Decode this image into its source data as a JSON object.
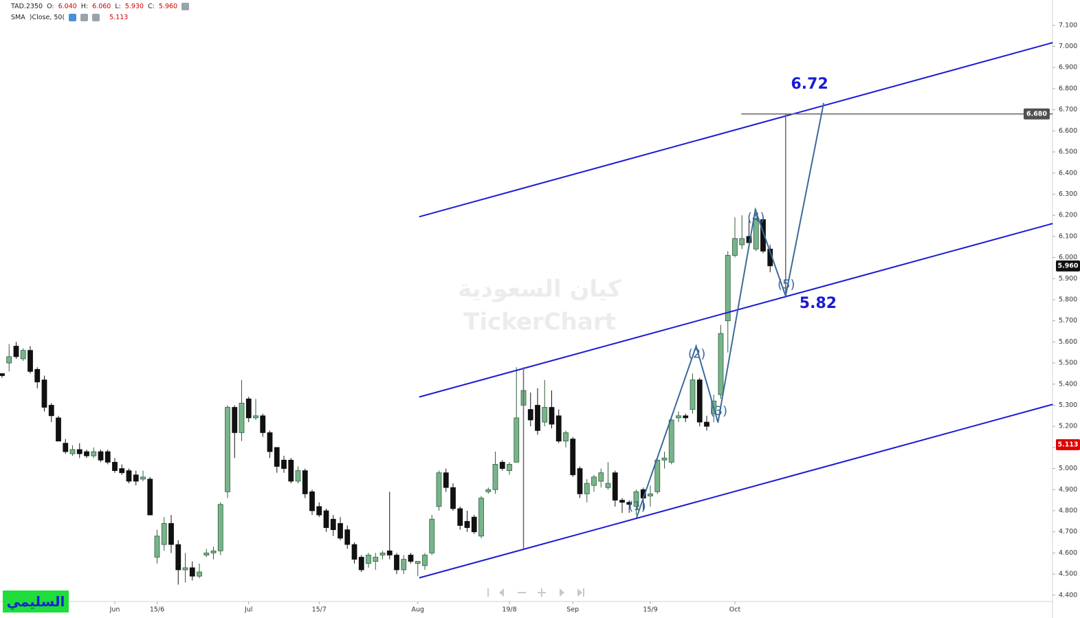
{
  "header": {
    "symbol": "TAD.2350",
    "fields": [
      {
        "label": "O:",
        "value": "6.040"
      },
      {
        "label": "H:",
        "value": "6.060"
      },
      {
        "label": "L:",
        "value": "5.930"
      },
      {
        "label": "C:",
        "value": "5.960"
      }
    ],
    "indicator": {
      "name": "SMA",
      "params": ")Close, 50(",
      "value": "5.113"
    }
  },
  "watermark": {
    "line1": "كيان السعودية",
    "line2": "TickerChart"
  },
  "brand": "السليمي",
  "chart_data": {
    "type": "candlestick",
    "categories": [
      null,
      null,
      null,
      null,
      null,
      null,
      null,
      null,
      null,
      null,
      null,
      null,
      null,
      null,
      null,
      null,
      "Jun",
      null,
      null,
      null,
      null,
      null,
      "15/6",
      null,
      null,
      null,
      null,
      null,
      null,
      null,
      null,
      null,
      null,
      null,
      null,
      "Jul",
      null,
      null,
      null,
      null,
      null,
      null,
      null,
      null,
      null,
      "15/7",
      null,
      null,
      null,
      null,
      null,
      null,
      null,
      null,
      null,
      null,
      null,
      null,
      null,
      "Aug",
      null,
      null,
      null,
      null,
      null,
      null,
      null,
      null,
      null,
      null,
      null,
      null,
      "19/8",
      null,
      null,
      null,
      null,
      null,
      null,
      null,
      null,
      "Sep",
      null,
      null,
      null,
      null,
      null,
      null,
      null,
      null,
      null,
      null,
      "15/9",
      null,
      null,
      null,
      null,
      null,
      null,
      null,
      null,
      null,
      null,
      null,
      "Oct",
      null,
      null,
      null,
      null,
      null
    ],
    "open": [
      5.45,
      5.5,
      5.58,
      5.52,
      5.56,
      5.47,
      5.42,
      5.3,
      5.24,
      5.12,
      5.07,
      5.09,
      5.08,
      5.06,
      5.08,
      5.08,
      5.03,
      5.0,
      4.99,
      4.97,
      4.95,
      4.95,
      4.58,
      4.64,
      4.74,
      4.64,
      4.52,
      4.53,
      4.49,
      4.59,
      4.6,
      4.61,
      4.89,
      5.29,
      5.17,
      5.33,
      5.24,
      5.25,
      5.17,
      5.1,
      5.04,
      5.04,
      4.94,
      4.99,
      4.89,
      4.82,
      4.8,
      4.76,
      4.74,
      4.71,
      4.64,
      4.58,
      4.55,
      4.56,
      4.59,
      4.61,
      4.59,
      4.52,
      4.59,
      4.55,
      4.54,
      4.6,
      4.82,
      4.98,
      4.91,
      4.81,
      4.75,
      4.77,
      4.68,
      4.89,
      4.9,
      5.03,
      4.99,
      5.03,
      5.3,
      5.28,
      5.3,
      5.22,
      5.29,
      5.25,
      5.13,
      5.14,
      5.0,
      4.88,
      4.92,
      4.94,
      4.91,
      4.98,
      4.85,
      4.84,
      4.82,
      4.9,
      4.87,
      4.89,
      5.04,
      5.03,
      5.24,
      5.25,
      5.28,
      5.42,
      5.22,
      5.26,
      5.35,
      5.7,
      6.01,
      6.06,
      6.1,
      6.04,
      6.18,
      6.04
    ],
    "high": [
      5.45,
      5.59,
      5.6,
      5.57,
      5.58,
      5.48,
      5.44,
      5.31,
      5.25,
      5.14,
      5.11,
      5.12,
      5.09,
      5.1,
      5.09,
      5.09,
      5.05,
      5.02,
      5.0,
      4.99,
      4.99,
      4.96,
      4.71,
      4.77,
      4.78,
      4.66,
      4.6,
      4.56,
      4.55,
      4.62,
      4.63,
      4.84,
      5.3,
      5.3,
      5.42,
      5.34,
      5.33,
      5.26,
      5.18,
      5.1,
      5.06,
      5.05,
      5.01,
      5.0,
      4.9,
      4.84,
      4.81,
      4.78,
      4.77,
      4.73,
      4.65,
      4.59,
      4.6,
      4.6,
      4.61,
      4.89,
      4.6,
      4.59,
      4.6,
      4.56,
      4.6,
      4.78,
      4.99,
      5.0,
      4.93,
      4.82,
      4.8,
      4.78,
      4.87,
      4.91,
      5.08,
      5.04,
      5.03,
      5.48,
      5.48,
      5.36,
      5.38,
      5.42,
      5.37,
      5.28,
      5.18,
      5.15,
      5.01,
      4.95,
      4.97,
      5.0,
      5.03,
      4.99,
      4.86,
      4.85,
      4.9,
      4.91,
      4.92,
      5.05,
      5.08,
      5.24,
      5.27,
      5.26,
      5.45,
      5.43,
      5.25,
      5.35,
      5.68,
      6.03,
      6.19,
      6.2,
      6.19,
      6.23,
      6.19,
      6.06
    ],
    "low": [
      5.43,
      5.46,
      5.52,
      5.51,
      5.45,
      5.38,
      5.27,
      5.22,
      5.13,
      5.07,
      5.06,
      5.05,
      5.05,
      5.05,
      5.03,
      5.02,
      4.98,
      4.97,
      4.93,
      4.92,
      4.94,
      4.78,
      4.55,
      4.61,
      4.6,
      4.45,
      4.46,
      4.47,
      4.48,
      4.58,
      4.57,
      4.59,
      4.86,
      5.05,
      5.13,
      5.22,
      5.23,
      5.15,
      5.05,
      4.98,
      4.98,
      4.93,
      4.93,
      4.86,
      4.78,
      4.77,
      4.7,
      4.68,
      4.66,
      4.62,
      4.55,
      4.51,
      4.53,
      4.52,
      4.57,
      4.57,
      4.5,
      4.5,
      4.55,
      4.49,
      4.52,
      4.59,
      4.8,
      4.89,
      4.8,
      4.71,
      4.7,
      4.69,
      4.67,
      4.88,
      4.88,
      4.99,
      4.97,
      5.03,
      5.2,
      5.2,
      5.16,
      5.2,
      5.19,
      5.12,
      5.1,
      4.96,
      4.86,
      4.84,
      4.89,
      4.91,
      4.9,
      4.82,
      4.79,
      4.79,
      4.78,
      4.8,
      4.82,
      4.88,
      5.0,
      5.02,
      5.22,
      5.22,
      5.26,
      5.2,
      5.18,
      5.22,
      5.33,
      5.55,
      6.0,
      6.04,
      6.05,
      6.03,
      6.02,
      5.93
    ],
    "close": [
      5.44,
      5.53,
      5.53,
      5.56,
      5.46,
      5.41,
      5.29,
      5.25,
      5.13,
      5.08,
      5.09,
      5.07,
      5.06,
      5.08,
      5.04,
      5.03,
      4.99,
      4.98,
      4.94,
      4.94,
      4.96,
      4.78,
      4.68,
      4.74,
      4.64,
      4.52,
      4.53,
      4.49,
      4.51,
      4.6,
      4.61,
      4.83,
      5.29,
      5.17,
      5.31,
      5.24,
      5.25,
      5.17,
      5.08,
      5.01,
      5.0,
      4.94,
      4.99,
      4.88,
      4.8,
      4.78,
      4.72,
      4.71,
      4.67,
      4.64,
      4.57,
      4.52,
      4.59,
      4.58,
      4.6,
      4.59,
      4.52,
      4.57,
      4.56,
      4.56,
      4.59,
      4.76,
      4.98,
      4.91,
      4.81,
      4.73,
      4.72,
      4.7,
      4.86,
      4.9,
      5.02,
      5.0,
      5.02,
      5.24,
      5.37,
      5.23,
      5.18,
      5.29,
      5.21,
      5.13,
      5.17,
      4.97,
      4.88,
      4.93,
      4.96,
      4.98,
      4.93,
      4.85,
      4.84,
      4.83,
      4.89,
      4.86,
      4.88,
      5.04,
      5.05,
      5.23,
      5.25,
      5.24,
      5.42,
      5.22,
      5.2,
      5.32,
      5.64,
      6.01,
      6.09,
      6.09,
      6.07,
      6.18,
      6.03,
      5.96
    ],
    "up_color": "#78b48a",
    "up_border": "#2f5e3c",
    "down_color": "#111111",
    "ylim": [
      4.37,
      7.22
    ],
    "yticks": [
      {
        "value": 4.4,
        "label": "4.400"
      },
      {
        "value": 4.5,
        "label": "4.500"
      },
      {
        "value": 4.6,
        "label": "4.600"
      },
      {
        "value": 4.7,
        "label": "4.700"
      },
      {
        "value": 4.8,
        "label": "4.800"
      },
      {
        "value": 4.9,
        "label": "4.900"
      },
      {
        "value": 5.0,
        "label": "5.000"
      },
      {
        "value": 5.1,
        "label": "5.100"
      },
      {
        "value": 5.2,
        "label": "5.200"
      },
      {
        "value": 5.3,
        "label": "5.300"
      },
      {
        "value": 5.4,
        "label": "5.400"
      },
      {
        "value": 5.5,
        "label": "5.500"
      },
      {
        "value": 5.6,
        "label": "5.600"
      },
      {
        "value": 5.7,
        "label": "5.700"
      },
      {
        "value": 5.8,
        "label": "5.800"
      },
      {
        "value": 5.9,
        "label": "5.900"
      },
      {
        "value": 6.0,
        "label": "6.000"
      },
      {
        "value": 6.1,
        "label": "6.100"
      },
      {
        "value": 6.2,
        "label": "6.200"
      },
      {
        "value": 6.3,
        "label": "6.300"
      },
      {
        "value": 6.4,
        "label": "6.400"
      },
      {
        "value": 6.5,
        "label": "6.500"
      },
      {
        "value": 6.6,
        "label": "6.600"
      },
      {
        "value": 6.7,
        "label": "6.700"
      },
      {
        "value": 6.8,
        "label": "6.800"
      },
      {
        "value": 6.9,
        "label": "6.900"
      },
      {
        "value": 7.0,
        "label": "7.000"
      },
      {
        "value": 7.1,
        "label": "7.100"
      }
    ],
    "price_tags": [
      {
        "value": 6.68,
        "label": "6.680",
        "color": "#505050"
      },
      {
        "value": 5.96,
        "label": "5.960",
        "color": "#111111"
      },
      {
        "value": 5.113,
        "label": "5.113",
        "color": "#e00000"
      }
    ],
    "trend_lines": [
      {
        "color": "#1a1ad6",
        "points": [
          [
            59.2,
            6.193
          ],
          [
            149.1,
            7.018
          ]
        ]
      },
      {
        "color": "#1a1ad6",
        "points": [
          [
            59.2,
            5.339
          ],
          [
            149.1,
            6.161
          ]
        ]
      },
      {
        "color": "#1a1ad6",
        "points": [
          [
            59.2,
            4.482
          ],
          [
            149.1,
            5.304
          ]
        ]
      },
      {
        "color": "#666666",
        "points": [
          [
            74,
            5.48
          ],
          [
            74,
            4.62
          ]
        ]
      },
      {
        "color": "#666666",
        "points": [
          [
            104.9,
            6.68
          ],
          [
            149.1,
            6.68
          ]
        ]
      },
      {
        "color": "#666666",
        "points": [
          [
            111.2,
            5.82
          ],
          [
            111.2,
            6.68
          ]
        ]
      }
    ],
    "wave": {
      "color": "#3a6a9a",
      "points": [
        [
          90.05,
          4.768
        ],
        [
          98.5,
          5.58
        ],
        [
          101.6,
          5.218
        ],
        [
          106.9,
          6.226
        ],
        [
          111.2,
          5.818
        ],
        [
          116.6,
          6.732
        ]
      ],
      "labels": [
        "(1)",
        "(2)",
        "(3)",
        "(4)",
        "(5)"
      ],
      "label_sides": [
        "above",
        "below",
        "above",
        "below",
        "above"
      ]
    },
    "annotations": [
      {
        "text": "6.72",
        "x": 114.6,
        "y": 6.82,
        "color": "#1a1ad6"
      },
      {
        "text": "5.82",
        "x": 115.8,
        "y": 5.78,
        "color": "#1a1ad6"
      }
    ]
  }
}
